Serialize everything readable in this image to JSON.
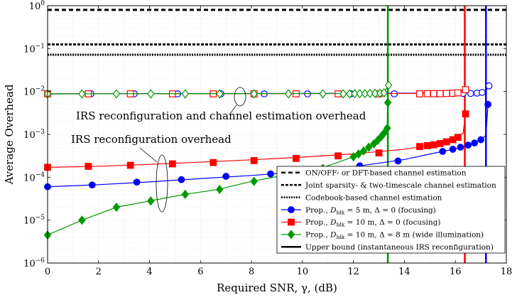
{
  "chart_data": {
    "type": "line",
    "title": "",
    "xlabel": "Required SNR, γ, (dB)",
    "ylabel": "Average Overhead",
    "xlim": [
      0,
      18
    ],
    "ylim": [
      1e-06,
      1
    ],
    "yscale": "log",
    "grid": true,
    "legend_position": "bottom-right",
    "xticks": [
      "0",
      "2",
      "4",
      "6",
      "8",
      "10",
      "12",
      "14",
      "16",
      "18"
    ],
    "yticks": [
      {
        "base": "10",
        "exp": "−6"
      },
      {
        "base": "10",
        "exp": "−5"
      },
      {
        "base": "10",
        "exp": "−4"
      },
      {
        "base": "10",
        "exp": "−3"
      },
      {
        "base": "10",
        "exp": "−2"
      },
      {
        "base": "10",
        "exp": "−1"
      },
      {
        "base": "10",
        "exp": "0"
      }
    ],
    "annotations": {
      "total": "IRS reconfiguration and channel estimation overhead",
      "reconf": "IRS reconfiguration overhead"
    },
    "series": [
      {
        "name": "ON/OFF- or DFT-based channel estimation",
        "kind": "hline",
        "style": "dashed",
        "color": "#000000",
        "y": 0.8
      },
      {
        "name": "Joint sparsity- & two-timescale channel estimation",
        "kind": "hline",
        "style": "densedash",
        "color": "#000000",
        "y": 0.125
      },
      {
        "name": "Codebook-based channel estimation",
        "kind": "hline",
        "style": "dotted",
        "color": "#000000",
        "y": 0.072
      },
      {
        "name": "Prop., D_blk = 5 m, Δ = 0 (focusing)",
        "legend_parts": [
          "Prop., ",
          "D",
          "blk",
          " = 5 m, Δ = 0 (focusing)"
        ],
        "color": "#0000ff",
        "marker": "circle",
        "reconf": [
          [
            0,
            6e-05
          ],
          [
            2,
            6.7e-05
          ],
          [
            4,
            7.8e-05
          ],
          [
            6,
            9.3e-05
          ],
          [
            8,
            0.00011
          ],
          [
            10,
            0.000135
          ],
          [
            12,
            0.000175
          ],
          [
            14,
            0.00026
          ],
          [
            15.5,
            0.0004
          ],
          [
            16,
            0.00046
          ],
          [
            16.5,
            0.00056
          ],
          [
            17,
            0.00075
          ],
          [
            17.2,
            0.00095
          ],
          [
            17.28,
            0.005
          ]
        ],
        "reconf_markers": [
          [
            0,
            6e-05
          ],
          [
            1.75,
            6.6e-05
          ],
          [
            3.5,
            7.7e-05
          ],
          [
            5.25,
            8.8e-05
          ],
          [
            7,
            0.000105
          ],
          [
            8.75,
            0.00012
          ],
          [
            10.5,
            0.000145
          ],
          [
            12.25,
            0.000185
          ],
          [
            13.75,
            0.00024
          ],
          [
            15.5,
            0.0004
          ],
          [
            15.9,
            0.00045
          ],
          [
            16.2,
            0.0005
          ],
          [
            16.5,
            0.00056
          ],
          [
            16.75,
            0.00063
          ],
          [
            17.0,
            0.00075
          ],
          [
            17.28,
            0.005
          ]
        ],
        "total": [
          [
            0,
            0.0088
          ],
          [
            17,
            0.0092
          ],
          [
            17.15,
            0.0096
          ],
          [
            17.32,
            0.0135
          ]
        ],
        "total_markers": [
          [
            0,
            0.0088
          ],
          [
            1.7,
            0.0088
          ],
          [
            3.4,
            0.0088
          ],
          [
            5.1,
            0.0088
          ],
          [
            6.8,
            0.0088
          ],
          [
            8.5,
            0.0088
          ],
          [
            10.2,
            0.0088
          ],
          [
            11.9,
            0.0088
          ],
          [
            13.6,
            0.0088
          ],
          [
            15.3,
            0.0088
          ],
          [
            15.9,
            0.009
          ],
          [
            16.3,
            0.009
          ],
          [
            16.6,
            0.009
          ],
          [
            16.85,
            0.0092
          ],
          [
            17.05,
            0.0095
          ],
          [
            17.32,
            0.0135
          ]
        ],
        "bound_x": 17.2
      },
      {
        "name": "Prop., D_blk = 10 m, Δ = 0 (focusing)",
        "legend_parts": [
          "Prop., ",
          "D",
          "blk",
          " = 10 m, Δ = 0 (focusing)"
        ],
        "color": "#ff0000",
        "marker": "square",
        "reconf": [
          [
            0,
            0.00017
          ],
          [
            2,
            0.00018
          ],
          [
            4,
            0.0002
          ],
          [
            6,
            0.000225
          ],
          [
            8,
            0.000255
          ],
          [
            10,
            0.000295
          ],
          [
            12,
            0.00035
          ],
          [
            14,
            0.00045
          ],
          [
            15,
            0.00055
          ],
          [
            15.5,
            0.00064
          ],
          [
            16,
            0.00083
          ],
          [
            16.3,
            0.00105
          ],
          [
            16.4,
            0.003
          ]
        ],
        "reconf_markers": [
          [
            0,
            0.00017
          ],
          [
            1.6,
            0.00018
          ],
          [
            3.25,
            0.00019
          ],
          [
            4.9,
            0.000205
          ],
          [
            6.5,
            0.00022
          ],
          [
            8.1,
            0.000245
          ],
          [
            9.75,
            0.000275
          ],
          [
            11.4,
            0.000315
          ],
          [
            13.0,
            0.00037
          ],
          [
            14.6,
            0.00052
          ],
          [
            14.9,
            0.000545
          ],
          [
            15.15,
            0.00057
          ],
          [
            15.4,
            0.00061
          ],
          [
            15.65,
            0.00067
          ],
          [
            15.9,
            0.00075
          ],
          [
            16.1,
            0.00085
          ],
          [
            16.4,
            0.003
          ]
        ],
        "total": [
          [
            0,
            0.0088
          ],
          [
            16,
            0.009
          ],
          [
            16.2,
            0.0093
          ],
          [
            16.4,
            0.011
          ]
        ],
        "total_markers": [
          [
            0,
            0.0088
          ],
          [
            1.6,
            0.0088
          ],
          [
            3.25,
            0.0088
          ],
          [
            4.9,
            0.0088
          ],
          [
            6.5,
            0.0088
          ],
          [
            8.1,
            0.0088
          ],
          [
            9.75,
            0.0088
          ],
          [
            11.4,
            0.0088
          ],
          [
            13.0,
            0.0088
          ],
          [
            14.6,
            0.0088
          ],
          [
            14.9,
            0.0089
          ],
          [
            15.15,
            0.0089
          ],
          [
            15.4,
            0.0089
          ],
          [
            15.65,
            0.009
          ],
          [
            15.9,
            0.0091
          ],
          [
            16.1,
            0.0093
          ],
          [
            16.4,
            0.011
          ]
        ],
        "bound_x": 16.37
      },
      {
        "name": "Prop., D_blk = 10 m, Δ = 8 m (wide illumination)",
        "legend_parts": [
          "Prop., ",
          "D",
          "blk",
          " = 10 m, Δ = 8 m (wide illumination)"
        ],
        "color": "#009900",
        "marker": "diamond",
        "reconf": [
          [
            0,
            4.5e-06
          ],
          [
            1.35,
            1e-05
          ],
          [
            2.7,
            2e-05
          ],
          [
            4,
            2.8e-05
          ],
          [
            5.4,
            4e-05
          ],
          [
            6.7,
            5.2e-05
          ],
          [
            8,
            8e-05
          ],
          [
            9.4,
            0.000115
          ],
          [
            10.7,
            0.00016
          ],
          [
            12,
            0.0003
          ],
          [
            12.5,
            0.00045
          ],
          [
            12.9,
            0.0007
          ],
          [
            13.2,
            0.0011
          ],
          [
            13.32,
            0.0014
          ],
          [
            13.35,
            0.0055
          ]
        ],
        "reconf_markers": [
          [
            0,
            4.5e-06
          ],
          [
            1.35,
            1e-05
          ],
          [
            2.7,
            2e-05
          ],
          [
            4.05,
            2.8e-05
          ],
          [
            5.4,
            4e-05
          ],
          [
            6.75,
            5.2e-05
          ],
          [
            8.1,
            8e-05
          ],
          [
            9.45,
            0.000115
          ],
          [
            10.8,
            0.00016
          ],
          [
            12.0,
            0.0003
          ],
          [
            12.2,
            0.00035
          ],
          [
            12.4,
            0.00041
          ],
          [
            12.6,
            0.0005
          ],
          [
            12.8,
            0.0006
          ],
          [
            12.95,
            0.00072
          ],
          [
            13.1,
            0.0009
          ],
          [
            13.22,
            0.0011
          ],
          [
            13.33,
            0.0014
          ],
          [
            13.35,
            0.0055
          ]
        ],
        "total": [
          [
            0,
            0.0088
          ],
          [
            12.8,
            0.009
          ],
          [
            13.2,
            0.0093
          ],
          [
            13.38,
            0.014
          ]
        ],
        "total_markers": [
          [
            0,
            0.0088
          ],
          [
            1.35,
            0.0088
          ],
          [
            2.7,
            0.0088
          ],
          [
            4.05,
            0.0088
          ],
          [
            5.4,
            0.0088
          ],
          [
            6.75,
            0.0088
          ],
          [
            8.1,
            0.0088
          ],
          [
            9.45,
            0.0088
          ],
          [
            10.8,
            0.0088
          ],
          [
            11.6,
            0.0088
          ],
          [
            11.85,
            0.0088
          ],
          [
            12.05,
            0.0089
          ],
          [
            12.25,
            0.0089
          ],
          [
            12.45,
            0.0089
          ],
          [
            12.65,
            0.009
          ],
          [
            12.85,
            0.009
          ],
          [
            13.05,
            0.0091
          ],
          [
            13.2,
            0.0093
          ],
          [
            13.38,
            0.014
          ]
        ],
        "bound_x": 13.35
      },
      {
        "name": "Upper bound (instantaneous IRS reconfiguration)",
        "kind": "legend-only",
        "color": "#000000"
      }
    ]
  }
}
